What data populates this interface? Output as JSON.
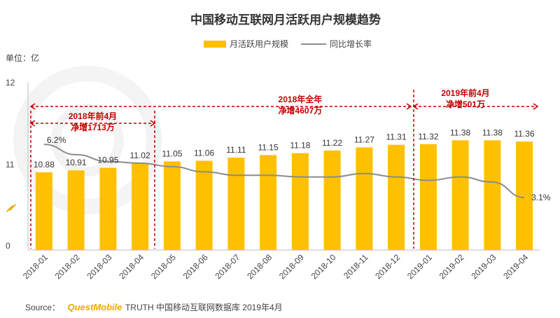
{
  "chart_data": {
    "type": "bar",
    "title": "中国移动互联网月活跃用户规模趋势",
    "unit_label": "单位：亿",
    "categories": [
      "2018-01",
      "2018-02",
      "2018-03",
      "2018-04",
      "2018-05",
      "2018-06",
      "2018-07",
      "2018-08",
      "2018-09",
      "2018-10",
      "2018-11",
      "2018-12",
      "2019-01",
      "2019-02",
      "2019-03",
      "2019-04"
    ],
    "series": [
      {
        "name": "月活跃用户规模",
        "type": "bar",
        "color": "#ffc000",
        "values": [
          10.88,
          10.91,
          10.95,
          11.02,
          11.05,
          11.06,
          11.11,
          11.15,
          11.18,
          11.22,
          11.27,
          11.31,
          11.32,
          11.38,
          11.38,
          11.36
        ],
        "labels": [
          "10.88",
          "10.91",
          "10.95",
          "11.02",
          "11.05",
          "11.06",
          "11.11",
          "11.15",
          "11.18",
          "11.22",
          "11.27",
          "11.31",
          "11.32",
          "11.38",
          "11.38",
          "11.36"
        ]
      },
      {
        "name": "同比增长率",
        "type": "line",
        "color": "#8c8c8c",
        "values": [
          6.2,
          5.6,
          5.2,
          5.1,
          4.9,
          4.6,
          4.4,
          4.4,
          4.3,
          4.3,
          4.5,
          4.3,
          4.1,
          4.3,
          4.0,
          3.1
        ]
      }
    ],
    "line_labels": [
      {
        "index": 0,
        "text": "6.2%"
      },
      {
        "index": 15,
        "text": "3.1%"
      }
    ],
    "yticks": [
      "12",
      "11",
      "0"
    ],
    "axis_break": true,
    "annotations": [
      {
        "lines": [
          "2018年前4月",
          "净增1713万"
        ],
        "from": "2018-01",
        "to": "2018-04"
      },
      {
        "lines": [
          "2018年全年",
          "净增4607万"
        ],
        "from": "2018-01",
        "to": "2018-12"
      },
      {
        "lines": [
          "2019年前4月",
          "净增501万"
        ],
        "from": "2019-01",
        "to": "2019-04"
      }
    ],
    "legend_position": "top-center",
    "grid": false
  },
  "source": {
    "prefix": "Source：",
    "brand": "QuestMobile",
    "suffix": "TRUTH 中国移动互联网数据库 2019年4月"
  },
  "colors": {
    "accent": "#ffc000",
    "line": "#8c8c8c",
    "annotation": "#c00000"
  }
}
